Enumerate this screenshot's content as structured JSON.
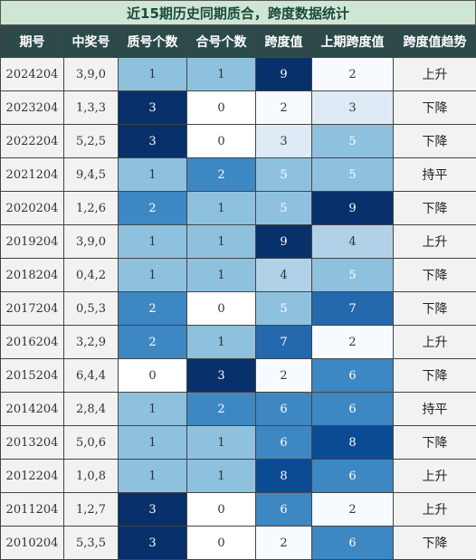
{
  "title": "近15期历史同期质合，跨度数据统计",
  "columns": [
    "期号",
    "中奖号",
    "质号个数",
    "合号个数",
    "跨度值",
    "上期跨度值",
    "跨度值趋势"
  ],
  "colors": {
    "header_bg": "#2c4a4a",
    "title_bg": "#cfe6d5",
    "scale": [
      "#f7fbff",
      "#deebf7",
      "#b0d1e8",
      "#8ec1de",
      "#5ba3d0",
      "#3d87c2",
      "#2468ad",
      "#0b4b94",
      "#08306b"
    ]
  },
  "rows": [
    {
      "period": "2024204",
      "draw": "3,9,0",
      "prime": "1",
      "composite": "1",
      "span": "9",
      "prev_span": "2",
      "trend": "上升"
    },
    {
      "period": "2023204",
      "draw": "1,3,3",
      "prime": "3",
      "composite": "0",
      "span": "2",
      "prev_span": "3",
      "trend": "下降"
    },
    {
      "period": "2022204",
      "draw": "5,2,5",
      "prime": "3",
      "composite": "0",
      "span": "3",
      "prev_span": "5",
      "trend": "下降"
    },
    {
      "period": "2021204",
      "draw": "9,4,5",
      "prime": "1",
      "composite": "2",
      "span": "5",
      "prev_span": "5",
      "trend": "持平"
    },
    {
      "period": "2020204",
      "draw": "1,2,6",
      "prime": "2",
      "composite": "1",
      "span": "5",
      "prev_span": "9",
      "trend": "下降"
    },
    {
      "period": "2019204",
      "draw": "3,9,0",
      "prime": "1",
      "composite": "1",
      "span": "9",
      "prev_span": "4",
      "trend": "上升"
    },
    {
      "period": "2018204",
      "draw": "0,4,2",
      "prime": "1",
      "composite": "1",
      "span": "4",
      "prev_span": "5",
      "trend": "下降"
    },
    {
      "period": "2017204",
      "draw": "0,5,3",
      "prime": "2",
      "composite": "0",
      "span": "5",
      "prev_span": "7",
      "trend": "下降"
    },
    {
      "period": "2016204",
      "draw": "3,2,9",
      "prime": "2",
      "composite": "1",
      "span": "7",
      "prev_span": "2",
      "trend": "上升"
    },
    {
      "period": "2015204",
      "draw": "6,4,4",
      "prime": "0",
      "composite": "3",
      "span": "2",
      "prev_span": "6",
      "trend": "下降"
    },
    {
      "period": "2014204",
      "draw": "2,8,4",
      "prime": "1",
      "composite": "2",
      "span": "6",
      "prev_span": "6",
      "trend": "持平"
    },
    {
      "period": "2013204",
      "draw": "5,0,6",
      "prime": "1",
      "composite": "1",
      "span": "6",
      "prev_span": "8",
      "trend": "下降"
    },
    {
      "period": "2012204",
      "draw": "1,0,8",
      "prime": "1",
      "composite": "1",
      "span": "8",
      "prev_span": "6",
      "trend": "上升"
    },
    {
      "period": "2011204",
      "draw": "1,2,7",
      "prime": "3",
      "composite": "0",
      "span": "6",
      "prev_span": "2",
      "trend": "上升"
    },
    {
      "period": "2010204",
      "draw": "5,3,5",
      "prime": "3",
      "composite": "0",
      "span": "2",
      "prev_span": "6",
      "trend": "下降"
    }
  ]
}
